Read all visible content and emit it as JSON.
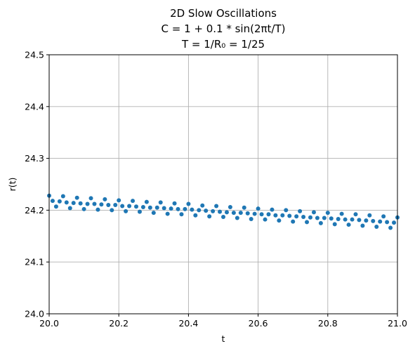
{
  "chart_data": {
    "type": "scatter",
    "title_lines": [
      "2D Slow Oscillations",
      "C = 1 + 0.1 * sin(2πt/T)",
      "T = 1/R₀ = 1/25"
    ],
    "xlabel": "t",
    "ylabel": "r(t)",
    "xlim": [
      20.0,
      21.0
    ],
    "ylim": [
      24.0,
      24.5
    ],
    "xticks": [
      20.0,
      20.2,
      20.4,
      20.6,
      20.8,
      21.0
    ],
    "xtick_labels": [
      "20.0",
      "20.2",
      "20.4",
      "20.6",
      "20.8",
      "21.0"
    ],
    "yticks": [
      24.0,
      24.1,
      24.2,
      24.3,
      24.4,
      24.5
    ],
    "ytick_labels": [
      "24.0",
      "24.1",
      "24.2",
      "24.3",
      "24.4",
      "24.5"
    ],
    "grid": true,
    "marker_color": "#1f77b4",
    "series": [
      {
        "x": [
          20.0,
          20.01,
          20.02,
          20.03,
          20.04,
          20.05,
          20.06,
          20.07,
          20.08,
          20.09,
          20.1,
          20.11,
          20.12,
          20.13,
          20.14,
          20.15,
          20.16,
          20.17,
          20.18,
          20.19,
          20.2,
          20.21,
          20.22,
          20.23,
          20.24,
          20.25,
          20.26,
          20.27,
          20.28,
          20.29,
          20.3,
          20.31,
          20.32,
          20.33,
          20.34,
          20.35,
          20.36,
          20.37,
          20.38,
          20.39,
          20.4,
          20.41,
          20.42,
          20.43,
          20.44,
          20.45,
          20.46,
          20.47,
          20.48,
          20.49,
          20.5,
          20.51,
          20.52,
          20.53,
          20.54,
          20.55,
          20.56,
          20.57,
          20.58,
          20.59,
          20.6,
          20.61,
          20.62,
          20.63,
          20.64,
          20.65,
          20.66,
          20.67,
          20.68,
          20.69,
          20.7,
          20.71,
          20.72,
          20.73,
          20.74,
          20.75,
          20.76,
          20.77,
          20.78,
          20.79,
          20.8,
          20.81,
          20.82,
          20.83,
          20.84,
          20.85,
          20.86,
          20.87,
          20.88,
          20.89,
          20.9,
          20.91,
          20.92,
          20.93,
          20.94,
          20.95,
          20.96,
          20.97,
          20.98,
          20.99,
          21.0
        ],
        "y": [
          24.228,
          24.218,
          24.207,
          24.217,
          24.227,
          24.215,
          24.204,
          24.214,
          24.224,
          24.213,
          24.202,
          24.212,
          24.223,
          24.212,
          24.201,
          24.211,
          24.221,
          24.21,
          24.2,
          24.21,
          24.219,
          24.208,
          24.198,
          24.208,
          24.218,
          24.207,
          24.197,
          24.206,
          24.216,
          24.205,
          24.195,
          24.205,
          24.215,
          24.204,
          24.193,
          24.203,
          24.213,
          24.202,
          24.192,
          24.202,
          24.212,
          24.201,
          24.19,
          24.2,
          24.209,
          24.199,
          24.188,
          24.198,
          24.208,
          24.197,
          24.187,
          24.196,
          24.206,
          24.195,
          24.185,
          24.195,
          24.205,
          24.194,
          24.183,
          24.193,
          24.203,
          24.192,
          24.182,
          24.192,
          24.201,
          24.19,
          24.18,
          24.19,
          24.2,
          24.189,
          24.178,
          24.188,
          24.198,
          24.187,
          24.177,
          24.186,
          24.196,
          24.185,
          24.175,
          24.185,
          24.195,
          24.184,
          24.173,
          24.183,
          24.193,
          24.182,
          24.172,
          24.182,
          24.192,
          24.181,
          24.17,
          24.18,
          24.19,
          24.179,
          24.168,
          24.178,
          24.188,
          24.177,
          24.166,
          24.176,
          24.186
        ]
      }
    ]
  }
}
